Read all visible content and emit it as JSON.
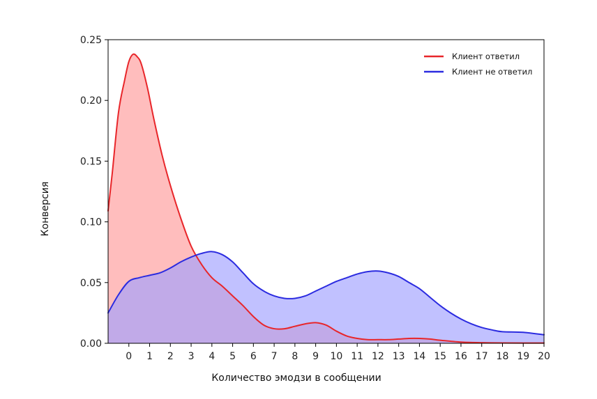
{
  "chart_data": {
    "type": "area",
    "title": "",
    "xlabel": "Количество эмодзи в сообщении",
    "ylabel": "Конверсия",
    "xlim": [
      -1,
      20
    ],
    "ylim": [
      0,
      0.25
    ],
    "xticks": [
      0,
      1,
      2,
      3,
      4,
      5,
      6,
      7,
      8,
      9,
      10,
      11,
      12,
      13,
      14,
      15,
      16,
      17,
      18,
      19,
      20
    ],
    "xtick_labels": [
      "0",
      "1",
      "2",
      "3",
      "4",
      "5",
      "6",
      "7",
      "8",
      "9",
      "10",
      "11",
      "12",
      "13",
      "14",
      "15",
      "16",
      "17",
      "18",
      "19",
      "20"
    ],
    "yticks": [
      0,
      0.05,
      0.1,
      0.15,
      0.2,
      0.25
    ],
    "ytick_labels": [
      "0.00",
      "0.05",
      "0.10",
      "0.15",
      "0.20",
      "0.25"
    ],
    "grid": false,
    "legend_position": "top-right",
    "series": [
      {
        "name": "Клиент ответил",
        "color": "#e8262a",
        "fill": "#ff9a9a",
        "x": [
          -1,
          -0.8,
          -0.5,
          -0.2,
          0,
          0.2,
          0.4,
          0.6,
          0.9,
          1.2,
          1.6,
          2,
          2.5,
          3,
          3.5,
          4,
          4.5,
          5,
          5.5,
          6,
          6.5,
          7,
          7.5,
          8,
          8.5,
          9,
          9.5,
          10,
          10.5,
          11,
          11.5,
          12,
          12.5,
          13,
          13.5,
          14,
          14.5,
          15,
          16,
          17,
          18,
          19,
          20
        ],
        "y": [
          0.109,
          0.14,
          0.19,
          0.217,
          0.232,
          0.238,
          0.236,
          0.23,
          0.21,
          0.185,
          0.155,
          0.13,
          0.103,
          0.08,
          0.065,
          0.054,
          0.047,
          0.039,
          0.031,
          0.022,
          0.015,
          0.012,
          0.012,
          0.014,
          0.016,
          0.017,
          0.015,
          0.01,
          0.006,
          0.004,
          0.003,
          0.003,
          0.003,
          0.0035,
          0.004,
          0.004,
          0.0035,
          0.0025,
          0.001,
          0.0005,
          0.0003,
          0.0002,
          0.0002
        ]
      },
      {
        "name": "Клиент не ответил",
        "color": "#2b2be0",
        "fill": "#a0a0ff",
        "x": [
          -1,
          -0.5,
          0,
          0.5,
          1,
          1.5,
          2,
          2.5,
          3,
          3.5,
          4,
          4.5,
          5,
          5.5,
          6,
          6.5,
          7,
          7.5,
          8,
          8.5,
          9,
          9.5,
          10,
          10.5,
          11,
          11.5,
          12,
          12.5,
          13,
          13.5,
          14,
          14.5,
          15,
          15.5,
          16,
          16.5,
          17,
          17.5,
          18,
          19,
          20
        ],
        "y": [
          0.025,
          0.04,
          0.051,
          0.054,
          0.056,
          0.058,
          0.062,
          0.067,
          0.071,
          0.074,
          0.0755,
          0.073,
          0.067,
          0.058,
          0.049,
          0.043,
          0.039,
          0.037,
          0.037,
          0.039,
          0.043,
          0.047,
          0.051,
          0.054,
          0.057,
          0.059,
          0.0595,
          0.058,
          0.055,
          0.05,
          0.045,
          0.038,
          0.031,
          0.025,
          0.02,
          0.016,
          0.013,
          0.011,
          0.0095,
          0.009,
          0.007
        ]
      }
    ]
  }
}
